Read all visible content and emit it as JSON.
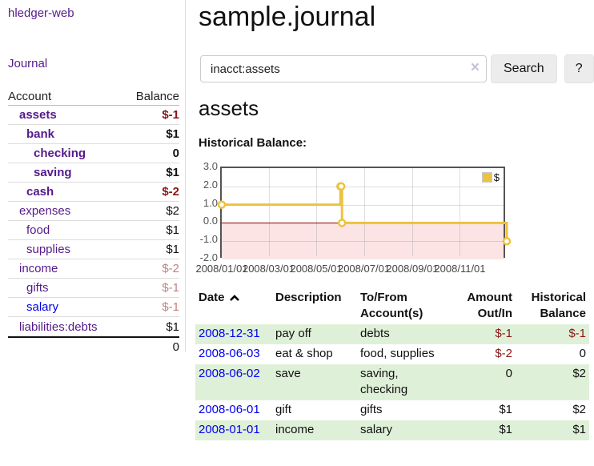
{
  "sidebar": {
    "brand": "hledger-web",
    "journal_link": "Journal",
    "accounts": {
      "header_account": "Account",
      "header_balance": "Balance",
      "rows": [
        {
          "name": "assets",
          "balance": "$-1"
        },
        {
          "name": "bank",
          "balance": "$1"
        },
        {
          "name": "checking",
          "balance": "0"
        },
        {
          "name": "saving",
          "balance": "$1"
        },
        {
          "name": "cash",
          "balance": "$-2"
        },
        {
          "name": "expenses",
          "balance": "$2"
        },
        {
          "name": "food",
          "balance": "$1"
        },
        {
          "name": "supplies",
          "balance": "$1"
        },
        {
          "name": "income",
          "balance": "$-2"
        },
        {
          "name": "gifts",
          "balance": "$-1"
        },
        {
          "name": "salary",
          "balance": "$-1"
        },
        {
          "name": "liabilities:debts",
          "balance": "$1"
        }
      ],
      "total": "0"
    }
  },
  "main": {
    "title": "sample.journal",
    "search": {
      "value": "inacct:assets",
      "clear_icon": "×",
      "search_button": "Search",
      "help_button": "?"
    },
    "account_title": "assets",
    "chart_heading": "Historical Balance:"
  },
  "chart_data": {
    "type": "line",
    "step": true,
    "title": "Historical Balance:",
    "x_range": [
      "2008-01-01",
      "2008-12-31"
    ],
    "ylim": [
      -2,
      3
    ],
    "y_ticks": [
      3.0,
      2.0,
      1.0,
      0.0,
      -1.0,
      -2.0
    ],
    "x_ticks": [
      "2008/01/01",
      "2008/03/01",
      "2008/05/01",
      "2008/07/01",
      "2008/09/01",
      "2008/11/01"
    ],
    "series": [
      {
        "name": "$",
        "color": "#edc240",
        "points": [
          [
            "2008-01-01",
            1
          ],
          [
            "2008-06-01",
            2
          ],
          [
            "2008-06-02",
            2
          ],
          [
            "2008-06-03",
            0
          ],
          [
            "2008-12-31",
            -1
          ]
        ]
      }
    ],
    "legend_position": "top-right",
    "grid": true,
    "negative_region_color": "#fce4e4",
    "zero_line_color": "#8b0000"
  },
  "register": {
    "headers": {
      "date": "Date",
      "description": "Description",
      "tofrom_line1": "To/From",
      "tofrom_line2": "Account(s)",
      "amount_line1": "Amount",
      "amount_line2": "Out/In",
      "hist_line1": "Historical",
      "hist_line2": "Balance"
    },
    "rows": [
      {
        "date": "2008-12-31",
        "description": "pay off",
        "accounts": "debts",
        "amount": "$-1",
        "balance": "$-1"
      },
      {
        "date": "2008-06-03",
        "description": "eat & shop",
        "accounts": "food, supplies",
        "amount": "$-2",
        "balance": "0"
      },
      {
        "date": "2008-06-02",
        "description": "save",
        "accounts": "saving, checking",
        "amount": "0",
        "balance": "$2"
      },
      {
        "date": "2008-06-01",
        "description": "gift",
        "accounts": "gifts",
        "amount": "$1",
        "balance": "$2"
      },
      {
        "date": "2008-01-01",
        "description": "income",
        "accounts": "salary",
        "amount": "$1",
        "balance": "$1"
      }
    ]
  },
  "colors": {
    "link_purple": "#551a8b",
    "link_blue": "#0000ee",
    "negative_strong": "#8b1515",
    "negative_faded": "#c08383",
    "row_stripe_green": "#dff0d8",
    "series_yellow": "#edc240"
  }
}
